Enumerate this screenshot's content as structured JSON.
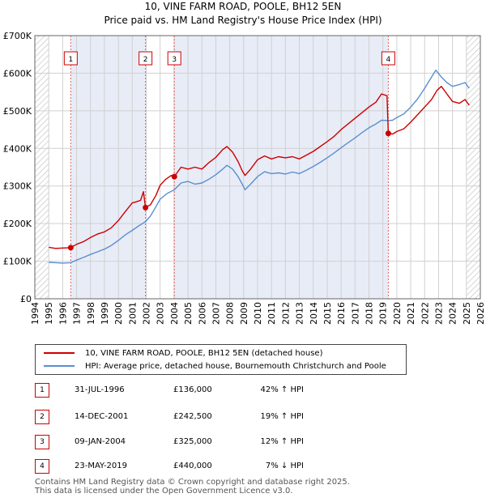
{
  "chart_data": {
    "type": "line",
    "title": "10, VINE FARM ROAD, POOLE, BH12 5EN",
    "subtitle": "Price paid vs. HM Land Registry's House Price Index (HPI)",
    "xlim": [
      1994,
      2026
    ],
    "ylim": [
      0,
      700000
    ],
    "x_ticks": [
      "1994",
      "1995",
      "1996",
      "1997",
      "1998",
      "1999",
      "2000",
      "2001",
      "2002",
      "2003",
      "2004",
      "2005",
      "2006",
      "2007",
      "2008",
      "2009",
      "2010",
      "2011",
      "2012",
      "2013",
      "2014",
      "2015",
      "2016",
      "2017",
      "2018",
      "2019",
      "2020",
      "2021",
      "2022",
      "2023",
      "2024",
      "2025",
      "2026"
    ],
    "y_ticks": [
      {
        "value": 0,
        "label": "£0"
      },
      {
        "value": 100000,
        "label": "£100K"
      },
      {
        "value": 200000,
        "label": "£200K"
      },
      {
        "value": 300000,
        "label": "£300K"
      },
      {
        "value": 400000,
        "label": "£400K"
      },
      {
        "value": 500000,
        "label": "£500K"
      },
      {
        "value": 600000,
        "label": "£600K"
      },
      {
        "value": 700000,
        "label": "£700K"
      }
    ],
    "shaded_periods": [
      {
        "from": 1994,
        "to": 1995,
        "hatched": true
      },
      {
        "from": 1996.58,
        "to": 2001.95
      },
      {
        "from": 2004.02,
        "to": 2019.39
      },
      {
        "from": 2025.0,
        "to": 2026,
        "hatched": true
      }
    ],
    "series": [
      {
        "name": "10, VINE FARM ROAD, POOLE, BH12 5EN (detached house)",
        "color": "#cc0000",
        "points": [
          [
            1995.0,
            137000
          ],
          [
            1995.5,
            134000
          ],
          [
            1996.0,
            135000
          ],
          [
            1996.58,
            136000
          ],
          [
            1997.0,
            145000
          ],
          [
            1997.5,
            152000
          ],
          [
            1998.0,
            163000
          ],
          [
            1998.5,
            172000
          ],
          [
            1999.0,
            178000
          ],
          [
            1999.5,
            189000
          ],
          [
            2000.0,
            208000
          ],
          [
            2000.5,
            232000
          ],
          [
            2001.0,
            255000
          ],
          [
            2001.3,
            258000
          ],
          [
            2001.6,
            262000
          ],
          [
            2001.8,
            285000
          ],
          [
            2001.95,
            242500
          ],
          [
            2002.3,
            250000
          ],
          [
            2002.7,
            275000
          ],
          [
            2003.0,
            302000
          ],
          [
            2003.4,
            318000
          ],
          [
            2003.8,
            328000
          ],
          [
            2004.02,
            325000
          ],
          [
            2004.5,
            350000
          ],
          [
            2005.0,
            345000
          ],
          [
            2005.5,
            350000
          ],
          [
            2006.0,
            345000
          ],
          [
            2006.5,
            362000
          ],
          [
            2007.0,
            376000
          ],
          [
            2007.5,
            397000
          ],
          [
            2007.8,
            405000
          ],
          [
            2008.2,
            390000
          ],
          [
            2008.6,
            365000
          ],
          [
            2008.9,
            340000
          ],
          [
            2009.1,
            328000
          ],
          [
            2009.5,
            345000
          ],
          [
            2010.0,
            370000
          ],
          [
            2010.5,
            380000
          ],
          [
            2011.0,
            372000
          ],
          [
            2011.5,
            378000
          ],
          [
            2012.0,
            375000
          ],
          [
            2012.5,
            378000
          ],
          [
            2013.0,
            372000
          ],
          [
            2013.5,
            382000
          ],
          [
            2014.0,
            392000
          ],
          [
            2014.5,
            405000
          ],
          [
            2015.0,
            418000
          ],
          [
            2015.5,
            432000
          ],
          [
            2016.0,
            450000
          ],
          [
            2016.5,
            465000
          ],
          [
            2017.0,
            480000
          ],
          [
            2017.5,
            495000
          ],
          [
            2018.0,
            510000
          ],
          [
            2018.5,
            523000
          ],
          [
            2018.9,
            545000
          ],
          [
            2019.3,
            540000
          ],
          [
            2019.39,
            440000
          ],
          [
            2019.7,
            438000
          ],
          [
            2020.0,
            445000
          ],
          [
            2020.5,
            452000
          ],
          [
            2021.0,
            470000
          ],
          [
            2021.5,
            490000
          ],
          [
            2022.0,
            510000
          ],
          [
            2022.5,
            530000
          ],
          [
            2022.9,
            555000
          ],
          [
            2023.2,
            565000
          ],
          [
            2023.6,
            545000
          ],
          [
            2024.0,
            525000
          ],
          [
            2024.5,
            520000
          ],
          [
            2024.9,
            530000
          ],
          [
            2025.2,
            515000
          ]
        ]
      },
      {
        "name": "HPI: Average price, detached house, Bournemouth Christchurch and Poole",
        "color": "#5a8fd0",
        "points": [
          [
            1995.0,
            97000
          ],
          [
            1995.5,
            96000
          ],
          [
            1996.0,
            95000
          ],
          [
            1996.58,
            96000
          ],
          [
            1997.0,
            103000
          ],
          [
            1997.5,
            110000
          ],
          [
            1998.0,
            118000
          ],
          [
            1998.5,
            125000
          ],
          [
            1999.0,
            132000
          ],
          [
            1999.5,
            142000
          ],
          [
            2000.0,
            155000
          ],
          [
            2000.5,
            170000
          ],
          [
            2001.0,
            182000
          ],
          [
            2001.5,
            195000
          ],
          [
            2001.95,
            205000
          ],
          [
            2002.3,
            220000
          ],
          [
            2002.7,
            245000
          ],
          [
            2003.0,
            265000
          ],
          [
            2003.5,
            280000
          ],
          [
            2004.02,
            290000
          ],
          [
            2004.5,
            308000
          ],
          [
            2005.0,
            312000
          ],
          [
            2005.5,
            305000
          ],
          [
            2006.0,
            308000
          ],
          [
            2006.5,
            318000
          ],
          [
            2007.0,
            330000
          ],
          [
            2007.5,
            345000
          ],
          [
            2007.8,
            355000
          ],
          [
            2008.2,
            345000
          ],
          [
            2008.6,
            325000
          ],
          [
            2008.9,
            305000
          ],
          [
            2009.1,
            290000
          ],
          [
            2009.5,
            305000
          ],
          [
            2010.0,
            325000
          ],
          [
            2010.5,
            338000
          ],
          [
            2011.0,
            333000
          ],
          [
            2011.5,
            335000
          ],
          [
            2012.0,
            332000
          ],
          [
            2012.5,
            337000
          ],
          [
            2013.0,
            333000
          ],
          [
            2013.5,
            342000
          ],
          [
            2014.0,
            352000
          ],
          [
            2014.5,
            363000
          ],
          [
            2015.0,
            375000
          ],
          [
            2015.5,
            388000
          ],
          [
            2016.0,
            402000
          ],
          [
            2016.5,
            415000
          ],
          [
            2017.0,
            428000
          ],
          [
            2017.5,
            442000
          ],
          [
            2018.0,
            455000
          ],
          [
            2018.5,
            465000
          ],
          [
            2018.9,
            475000
          ],
          [
            2019.39,
            474000
          ],
          [
            2019.7,
            475000
          ],
          [
            2020.0,
            482000
          ],
          [
            2020.5,
            492000
          ],
          [
            2021.0,
            510000
          ],
          [
            2021.5,
            532000
          ],
          [
            2022.0,
            560000
          ],
          [
            2022.5,
            590000
          ],
          [
            2022.8,
            608000
          ],
          [
            2023.2,
            590000
          ],
          [
            2023.6,
            575000
          ],
          [
            2024.0,
            565000
          ],
          [
            2024.5,
            570000
          ],
          [
            2024.9,
            575000
          ],
          [
            2025.2,
            560000
          ]
        ]
      }
    ],
    "sale_markers": [
      {
        "label": "1",
        "x": 1996.58,
        "y": 136000
      },
      {
        "label": "2",
        "x": 2001.95,
        "y": 242500
      },
      {
        "label": "3",
        "x": 2004.02,
        "y": 325000
      },
      {
        "label": "4",
        "x": 2019.39,
        "y": 440000
      }
    ]
  },
  "legend": {
    "property_label": "10, VINE FARM ROAD, POOLE, BH12 5EN (detached house)",
    "hpi_label": "HPI: Average price, detached house, Bournemouth Christchurch and Poole",
    "property_color": "#cc0000",
    "hpi_color": "#5a8fd0"
  },
  "sales": [
    {
      "num": "1",
      "date": "31-JUL-1996",
      "price": "£136,000",
      "hpi": "42% ↑ HPI"
    },
    {
      "num": "2",
      "date": "14-DEC-2001",
      "price": "£242,500",
      "hpi": "19% ↑ HPI"
    },
    {
      "num": "3",
      "date": "09-JAN-2004",
      "price": "£325,000",
      "hpi": "12% ↑ HPI"
    },
    {
      "num": "4",
      "date": "23-MAY-2019",
      "price": "£440,000",
      "hpi": "7% ↓ HPI"
    }
  ],
  "footer": {
    "line1": "Contains HM Land Registry data © Crown copyright and database right 2025.",
    "line2": "This data is licensed under the Open Government Licence v3.0."
  }
}
